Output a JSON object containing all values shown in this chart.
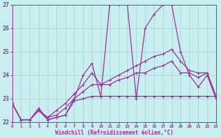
{
  "xlabel": "Windchill (Refroidissement éolien,°C)",
  "bg_color": "#c8eef0",
  "grid_color": "#a8d8d8",
  "line_color": "#993399",
  "spine_color": "#993399",
  "xmin": 0,
  "xmax": 23,
  "ymin": 22,
  "ymax": 27,
  "yticks": [
    22,
    23,
    24,
    25,
    26,
    27
  ],
  "xticks": [
    0,
    1,
    2,
    3,
    4,
    5,
    6,
    7,
    8,
    9,
    10,
    11,
    12,
    13,
    14,
    15,
    16,
    17,
    18,
    19,
    20,
    21,
    22,
    23
  ],
  "series": [
    [
      22.8,
      22.1,
      22.1,
      22.6,
      22.1,
      22.2,
      22.3,
      23.0,
      24.0,
      24.5,
      23.1,
      27.0,
      27.0,
      27.0,
      23.0,
      26.0,
      26.6,
      27.0,
      27.0,
      25.0,
      24.0,
      23.5,
      24.0,
      23.0
    ],
    [
      22.8,
      22.1,
      22.1,
      22.5,
      22.1,
      22.2,
      22.3,
      22.9,
      23.0,
      23.1,
      23.1,
      23.1,
      23.1,
      23.1,
      23.1,
      23.1,
      23.1,
      23.1,
      23.1,
      23.1,
      23.1,
      23.1,
      23.1,
      23.1
    ],
    [
      22.8,
      22.1,
      22.1,
      22.5,
      22.2,
      22.3,
      22.6,
      23.0,
      23.3,
      23.6,
      23.6,
      23.6,
      23.8,
      23.9,
      24.1,
      24.1,
      24.3,
      24.4,
      24.6,
      24.1,
      24.1,
      23.9,
      24.1,
      23.1
    ],
    [
      22.8,
      22.1,
      22.1,
      22.5,
      22.2,
      22.5,
      22.8,
      23.2,
      23.6,
      24.1,
      23.6,
      23.8,
      24.0,
      24.2,
      24.4,
      24.6,
      24.8,
      24.9,
      25.1,
      24.6,
      24.2,
      24.1,
      24.1,
      23.1
    ]
  ]
}
